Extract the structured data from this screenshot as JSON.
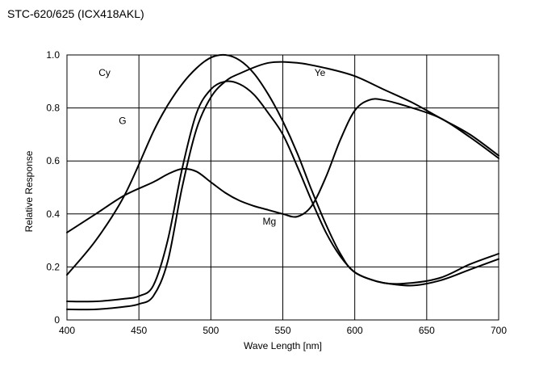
{
  "chart_data": {
    "type": "line",
    "title": "STC-620/625 (ICX418AKL)",
    "xlabel": "Wave Length [nm]",
    "ylabel": "Relative Response",
    "xlim": [
      400,
      700
    ],
    "ylim": [
      0,
      1.0
    ],
    "x_ticks": [
      400,
      450,
      500,
      550,
      600,
      650,
      700
    ],
    "y_ticks": [
      0,
      0.2,
      0.4,
      0.6,
      0.8,
      1.0
    ],
    "y_tick_labels": [
      "0",
      "0.2",
      "0.4",
      "0.6",
      "0.8",
      "1.0"
    ],
    "grid": true,
    "series": [
      {
        "name": "Cy",
        "x": [
          400,
          420,
          440,
          460,
          470,
          480,
          490,
          500,
          510,
          520,
          530,
          540,
          550,
          560,
          570,
          580,
          590,
          600,
          620,
          640,
          660,
          680,
          700
        ],
        "y": [
          0.17,
          0.3,
          0.47,
          0.71,
          0.81,
          0.89,
          0.95,
          0.99,
          1.0,
          0.98,
          0.93,
          0.85,
          0.75,
          0.63,
          0.49,
          0.36,
          0.25,
          0.18,
          0.14,
          0.14,
          0.16,
          0.21,
          0.25
        ]
      },
      {
        "name": "G",
        "x": [
          400,
          420,
          440,
          450,
          460,
          470,
          480,
          490,
          500,
          510,
          520,
          530,
          540,
          550,
          560,
          570,
          580,
          590,
          600,
          610,
          620,
          640,
          660,
          680,
          700
        ],
        "y": [
          0.07,
          0.07,
          0.08,
          0.09,
          0.13,
          0.3,
          0.57,
          0.78,
          0.87,
          0.9,
          0.89,
          0.85,
          0.78,
          0.7,
          0.58,
          0.45,
          0.33,
          0.24,
          0.18,
          0.155,
          0.14,
          0.13,
          0.15,
          0.19,
          0.23
        ]
      },
      {
        "name": "Ye",
        "x": [
          400,
          420,
          440,
          450,
          460,
          470,
          480,
          490,
          500,
          510,
          520,
          540,
          560,
          580,
          600,
          620,
          640,
          660,
          680,
          700
        ],
        "y": [
          0.04,
          0.04,
          0.05,
          0.06,
          0.09,
          0.22,
          0.5,
          0.72,
          0.84,
          0.9,
          0.93,
          0.97,
          0.97,
          0.95,
          0.92,
          0.87,
          0.82,
          0.76,
          0.7,
          0.62
        ]
      },
      {
        "name": "Mg",
        "x": [
          400,
          420,
          440,
          460,
          470,
          480,
          490,
          500,
          510,
          520,
          530,
          540,
          550,
          560,
          570,
          580,
          590,
          600,
          610,
          620,
          640,
          660,
          680,
          700
        ],
        "y": [
          0.33,
          0.4,
          0.47,
          0.52,
          0.55,
          0.57,
          0.56,
          0.52,
          0.48,
          0.45,
          0.43,
          0.415,
          0.4,
          0.39,
          0.43,
          0.54,
          0.68,
          0.79,
          0.83,
          0.83,
          0.8,
          0.76,
          0.69,
          0.61
        ]
      }
    ],
    "annotations": [
      {
        "text": "Cy",
        "x": 422,
        "y": 0.92
      },
      {
        "text": "G",
        "x": 436,
        "y": 0.74
      },
      {
        "text": "Ye",
        "x": 572,
        "y": 0.92
      },
      {
        "text": "Mg",
        "x": 536,
        "y": 0.36
      }
    ]
  }
}
